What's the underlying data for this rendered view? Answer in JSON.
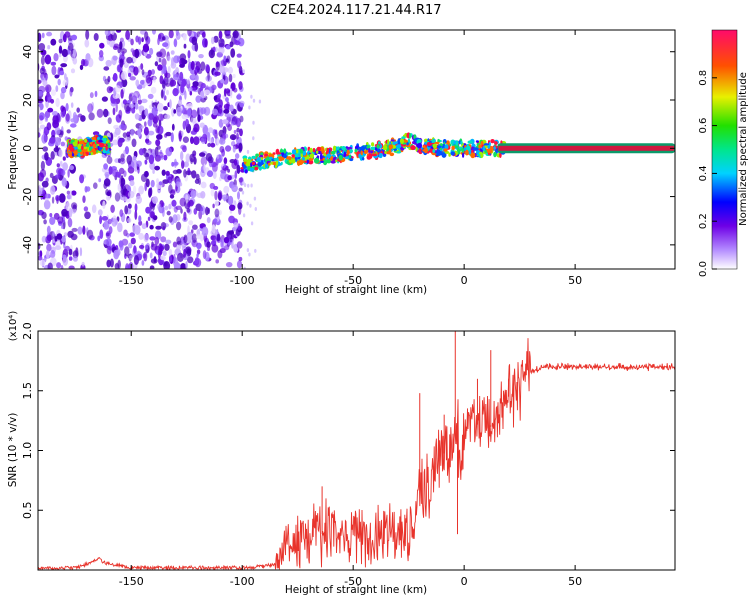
{
  "title": "C2E4.2024.117.21.44.R17",
  "colors": {
    "line": "#e8332b",
    "tube_fill": "#d01840",
    "tube_border": "#0c9a6a"
  },
  "chart_data": [
    {
      "type": "heatmap",
      "name": "spectrogram",
      "xlabel": "Height of straight line (km)",
      "ylabel": "Frequency (Hz)",
      "xlim": [
        -192,
        95
      ],
      "ylim": [
        -50,
        49
      ],
      "xticks": [
        -150,
        -100,
        -50,
        0,
        50
      ],
      "yticks": [
        -40,
        -20,
        0,
        20,
        40
      ],
      "colorbar": {
        "label": "Normalized spectral amplitude",
        "range": [
          0,
          1
        ],
        "ticks": [
          "0.0",
          "0.2",
          "0.4",
          "0.6",
          "0.8"
        ],
        "tick_values": [
          0.0,
          0.2,
          0.4,
          0.6,
          0.8
        ]
      },
      "noise_band": [
        -192,
        -100
      ],
      "noise_gap": [
        -175,
        -162
      ],
      "trace": {
        "x": [
          -192,
          -180,
          -172,
          -168,
          -164,
          -160,
          -100,
          -90,
          -80,
          -70,
          -60,
          -50,
          -40,
          -30,
          -25,
          -20,
          -15,
          -10,
          -5,
          0,
          5,
          10,
          15
        ],
        "y": [
          0,
          0,
          0,
          1,
          2,
          1,
          -7,
          -5,
          -4,
          -3,
          -3,
          -2,
          -1,
          1,
          3,
          1,
          1,
          0,
          0,
          0,
          0,
          0,
          0
        ]
      },
      "tone": {
        "x_start": 15,
        "x_end": 95,
        "freq": 0
      }
    },
    {
      "type": "line",
      "name": "snr",
      "xlabel": "Height of straight line (km)",
      "ylabel": "SNR (10 * v/v)",
      "multiplier": "(x10⁴)",
      "xlim": [
        -192,
        95
      ],
      "ylim": [
        0,
        2.0
      ],
      "xticks": [
        -150,
        -100,
        -50,
        0,
        50
      ],
      "yticks": [
        0.5,
        1.0,
        1.5,
        2.0
      ],
      "ytick_labels": [
        "0.5",
        "1.0",
        "1.5",
        "2.0"
      ],
      "series": [
        {
          "name": "SNR",
          "x": [
            -192,
            -175,
            -168,
            -165,
            -162,
            -150,
            -120,
            -100,
            -90,
            -85,
            -80,
            -75,
            -70,
            -65,
            -60,
            -55,
            -50,
            -45,
            -40,
            -35,
            -30,
            -25,
            -22,
            -20,
            -18,
            -15,
            -12,
            -10,
            -8,
            -5,
            -3,
            -2,
            0,
            2,
            5,
            8,
            10,
            12,
            15,
            18,
            20,
            25,
            30,
            35,
            40,
            50,
            60,
            70,
            80,
            95
          ],
          "y": [
            0.01,
            0.02,
            0.06,
            0.1,
            0.06,
            0.02,
            0.02,
            0.02,
            0.03,
            0.05,
            0.2,
            0.25,
            0.28,
            0.3,
            0.3,
            0.28,
            0.3,
            0.25,
            0.25,
            0.28,
            0.3,
            0.32,
            0.35,
            0.7,
            0.6,
            0.75,
            0.9,
            0.95,
            1.0,
            1.1,
            1.2,
            1.0,
            1.1,
            1.15,
            1.2,
            1.25,
            1.3,
            1.2,
            1.35,
            1.45,
            1.45,
            1.55,
            1.65,
            1.7,
            1.7,
            1.7,
            1.7,
            1.7,
            1.7,
            1.7
          ]
        }
      ],
      "spikes": [
        {
          "x": -4,
          "y": 2.0
        },
        {
          "x": -20,
          "y": 1.48
        },
        {
          "x": 12,
          "y": 1.84
        },
        {
          "x": 6,
          "y": 1.6
        },
        {
          "x": -9,
          "y": 1.3
        },
        {
          "x": 20,
          "y": 1.6
        },
        {
          "x": -3,
          "y": 0.3
        },
        {
          "x": -64,
          "y": 0.7
        }
      ]
    }
  ]
}
